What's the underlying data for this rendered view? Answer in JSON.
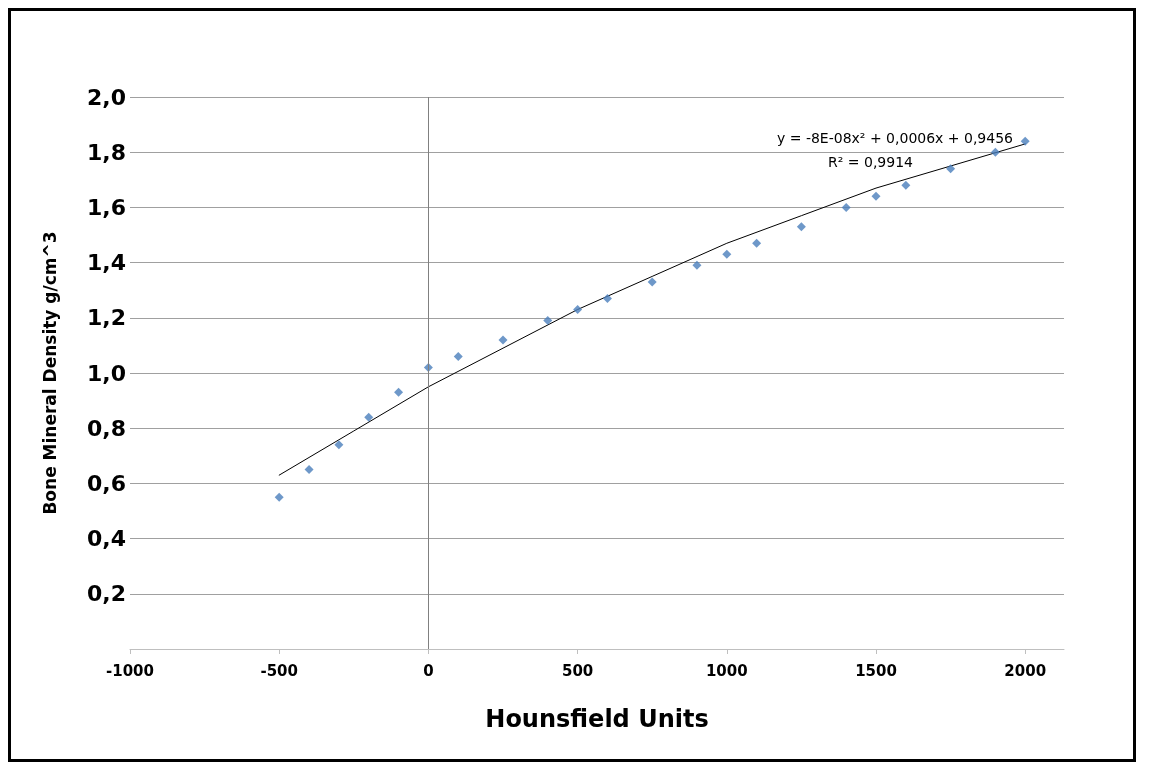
{
  "chart_data": {
    "type": "scatter",
    "xlabel": "Hounsfield Units",
    "ylabel": "Bone Mineral Density g/cm^3",
    "xlim": [
      -1000,
      2130
    ],
    "xticks": [
      -1000,
      -500,
      0,
      500,
      1000,
      1500,
      2000
    ],
    "ylim": [
      0,
      2
    ],
    "yticks": [
      {
        "value": 0,
        "label": null
      },
      {
        "value": 0.2,
        "label": "0,2"
      },
      {
        "value": 0.4,
        "label": "0,4"
      },
      {
        "value": 0.6,
        "label": "0,6"
      },
      {
        "value": 0.8,
        "label": "0,8"
      },
      {
        "value": 1.0,
        "label": "1,0"
      },
      {
        "value": 1.2,
        "label": "1,2"
      },
      {
        "value": 1.4,
        "label": "1,4"
      },
      {
        "value": 1.6,
        "label": "1,6"
      },
      {
        "value": 1.8,
        "label": "1,8"
      },
      {
        "value": 2.0,
        "label": "2,0"
      }
    ],
    "grid": "y",
    "series": [
      {
        "marker": "diamond",
        "color": "#4a7ebb",
        "x": [
          -500,
          -400,
          -300,
          -200,
          -100,
          0,
          100,
          250,
          400,
          500,
          600,
          750,
          900,
          1000,
          1100,
          1250,
          1400,
          1500,
          1600,
          1750,
          1900,
          2000
        ],
        "values": [
          0.55,
          0.65,
          0.74,
          0.84,
          0.93,
          1.02,
          1.06,
          1.12,
          1.19,
          1.23,
          1.27,
          1.33,
          1.39,
          1.43,
          1.47,
          1.53,
          1.6,
          1.64,
          1.68,
          1.74,
          1.8,
          1.84
        ]
      },
      {
        "type": "line",
        "marker": "none",
        "line_style": "solid",
        "color": "#000000",
        "x": [
          -500,
          -250,
          0,
          250,
          500,
          750,
          1000,
          1250,
          1500,
          1750,
          2000
        ],
        "values": [
          0.63,
          0.79,
          0.95,
          1.09,
          1.23,
          1.35,
          1.47,
          1.57,
          1.67,
          1.75,
          1.83
        ]
      }
    ],
    "annotations": [
      "y = -8E-08x² + 0,0006x + 0,9456",
      "R² = 0,9914"
    ]
  }
}
